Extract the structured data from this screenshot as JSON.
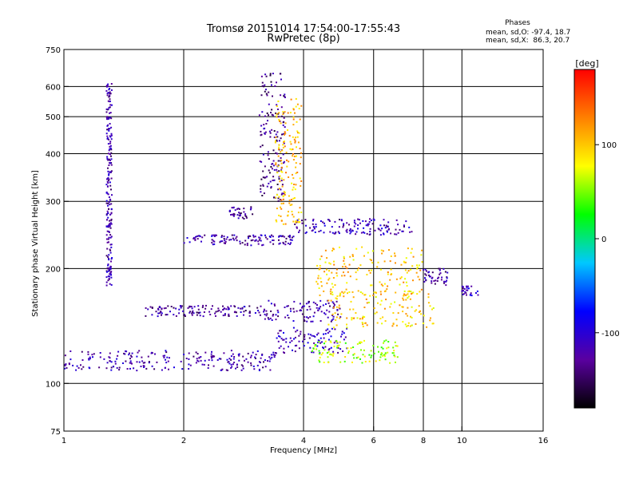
{
  "chart_data": {
    "type": "scatter",
    "title": "Tromsø 20151014 17:54:00-17:55:43",
    "subtitle": "RwPretec (8p)",
    "xlabel": "Frequency [MHz]",
    "ylabel": "Stationary phase Virtual Height [km]",
    "x_scale": "log",
    "y_scale": "log",
    "xlim": [
      1,
      16
    ],
    "ylim": [
      75,
      750
    ],
    "x_ticks": [
      "1",
      "2",
      "4",
      "6",
      "8",
      "10",
      "16"
    ],
    "y_ticks": [
      "750",
      "600",
      "500",
      "400",
      "300",
      "200",
      "100",
      "75"
    ],
    "grid": true,
    "stats": {
      "heading": "Phases",
      "line_o": "mean, sd,O: -97.4, 18.7",
      "line_x": "mean, sd,X:  86.3, 20.7"
    },
    "colorbar": {
      "title": "[deg]",
      "range": [
        -180,
        180
      ],
      "ticks": [
        "100",
        "0",
        "-100"
      ],
      "colors": [
        "#000000",
        "#5a00a0",
        "#0000ff",
        "#00c8ff",
        "#00ff00",
        "#ffff00",
        "#ff8000",
        "#ff0000"
      ]
    },
    "series": [
      {
        "freq_range": [
          1.0,
          3.4
        ],
        "height_range": [
          108,
          122
        ],
        "phase": -120
      },
      {
        "freq_range": [
          3.4,
          5.2
        ],
        "height_range": [
          120,
          140
        ],
        "phase": -110
      },
      {
        "freq_range": [
          4.2,
          7.0
        ],
        "height_range": [
          113,
          130
        ],
        "phase": 60
      },
      {
        "freq_range": [
          1.6,
          3.2
        ],
        "height_range": [
          150,
          160
        ],
        "phase": -125
      },
      {
        "freq_range": [
          3.2,
          5.0
        ],
        "height_range": [
          145,
          165
        ],
        "phase": -120
      },
      {
        "freq_range": [
          4.6,
          8.5
        ],
        "height_range": [
          140,
          175
        ],
        "phase": 95
      },
      {
        "freq_range": [
          2.0,
          3.8
        ],
        "height_range": [
          230,
          245
        ],
        "phase": -120
      },
      {
        "freq_range": [
          3.8,
          7.5
        ],
        "height_range": [
          245,
          270
        ],
        "phase": -115
      },
      {
        "freq_range": [
          2.6,
          3.0
        ],
        "height_range": [
          270,
          290
        ],
        "phase": -130
      },
      {
        "freq_range": [
          3.1,
          3.6
        ],
        "height_range": [
          300,
          650
        ],
        "phase": -135
      },
      {
        "freq_range": [
          3.4,
          3.95
        ],
        "height_range": [
          260,
          560
        ],
        "phase": 105
      },
      {
        "freq_range": [
          1.28,
          1.32
        ],
        "height_range": [
          180,
          620
        ],
        "phase": -120
      },
      {
        "freq_range": [
          4.3,
          8.0
        ],
        "height_range": [
          170,
          230
        ],
        "phase": 100
      },
      {
        "freq_range": [
          8.0,
          9.2
        ],
        "height_range": [
          180,
          200
        ],
        "phase": -125
      },
      {
        "freq_range": [
          10.0,
          11.0
        ],
        "height_range": [
          170,
          180
        ],
        "phase": -110
      }
    ]
  }
}
